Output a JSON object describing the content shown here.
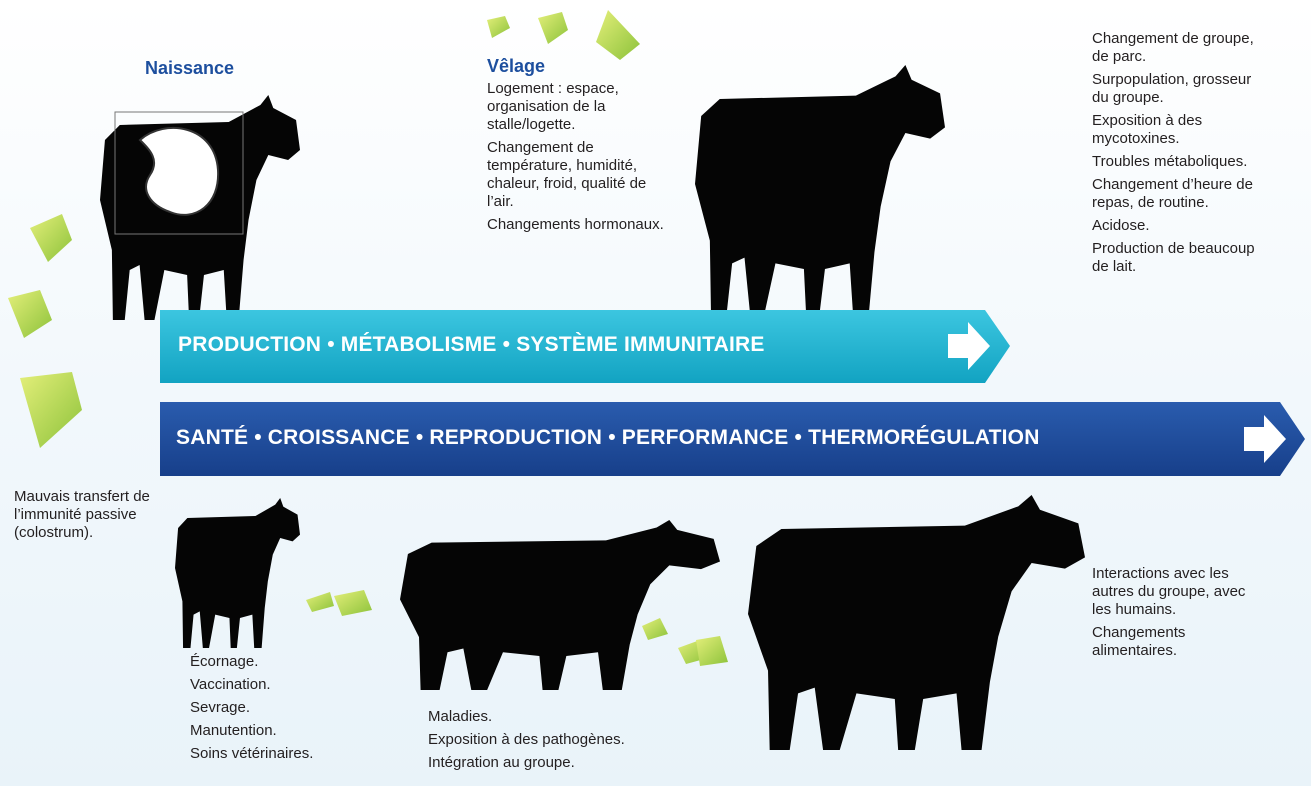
{
  "stages": {
    "birth": "Naissance",
    "calving": "Vêlage"
  },
  "banners": {
    "top": "PRODUCTION • MÉTABOLISME • SYSTÈME IMMUNITAIRE",
    "bottom": "SANTÉ • CROISSANCE • REPRODUCTION • PERFORMANCE • THERMORÉGULATION"
  },
  "notes": {
    "calving": [
      "Logement : espace, organisation de la stalle/logette.",
      "Changement de température, humidité, chaleur, froid, qualité de l’air.",
      "Changements hormonaux."
    ],
    "lactation": [
      "Changement de groupe, de parc.",
      "Surpopulation, grosseur du groupe.",
      "Exposition à des mycotoxines.",
      "Troubles métaboliques.",
      "Changement d’heure de repas, de routine.",
      "Acidose.",
      "Production de beaucoup de lait."
    ],
    "newborn": [
      "Mauvais transfert de l’immunité passive (colostrum)."
    ],
    "calf": [
      "Écornage.",
      "Vaccination.",
      "Sevrage.",
      "Manutention.",
      "Soins vétérinaires."
    ],
    "heifer": [
      "Maladies.",
      "Exposition à des pathogènes.",
      "Intégration au groupe."
    ],
    "young_cow": [
      "Interactions avec les autres du groupe, avec les humains.",
      "Changements alimentaires."
    ]
  }
}
